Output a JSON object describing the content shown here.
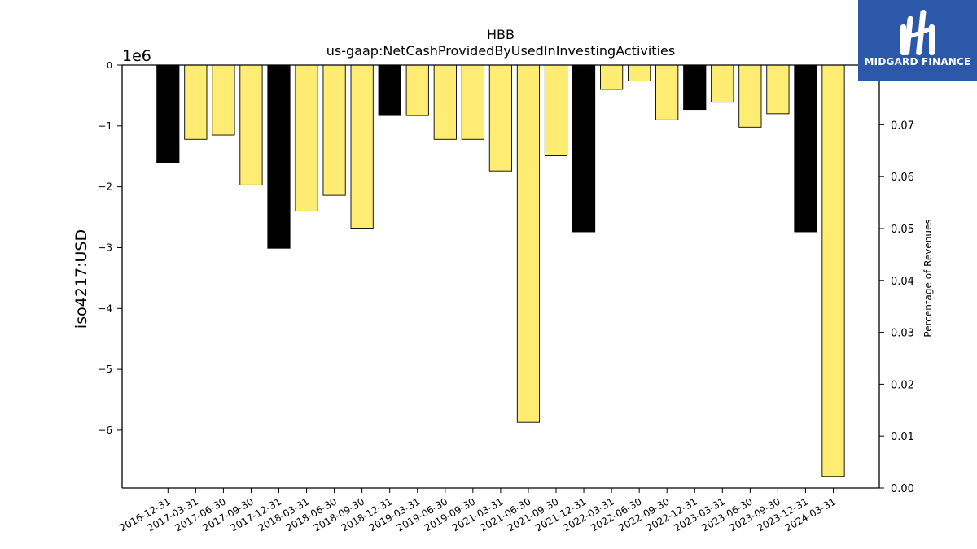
{
  "chart_data": {
    "type": "bar",
    "title": "HBB",
    "subtitle": "us-gaap:NetCashProvidedByUsedInInvestingActivities",
    "ylabel": "iso4217:USD",
    "y2label": "Percentage of Revenues",
    "y_offset_label": "1e6",
    "ylim": [
      -6.95,
      0
    ],
    "y_ticks": [
      0,
      -1,
      -2,
      -3,
      -4,
      -5,
      -6
    ],
    "y2lim": [
      0,
      0.0815
    ],
    "y2_ticks": [
      "0.00",
      "0.01",
      "0.02",
      "0.03",
      "0.04",
      "0.05",
      "0.06",
      "0.07"
    ],
    "categories": [
      "2016-12-31",
      "2017-03-31",
      "2017-06-30",
      "2017-09-30",
      "2017-12-31",
      "2018-03-31",
      "2018-06-30",
      "2018-09-30",
      "2018-12-31",
      "2019-03-31",
      "2019-06-30",
      "2019-09-30",
      "2021-03-31",
      "2021-06-30",
      "2021-09-30",
      "2021-12-31",
      "2022-03-31",
      "2022-06-30",
      "2022-09-30",
      "2022-12-31",
      "2023-03-31",
      "2023-06-30",
      "2023-09-30",
      "2023-12-31",
      "2024-03-31"
    ],
    "values": [
      -1.6,
      -1.22,
      -1.15,
      -1.97,
      -3.01,
      -2.4,
      -2.14,
      -2.68,
      -0.83,
      -0.83,
      -1.22,
      -1.22,
      -1.74,
      -5.87,
      -1.49,
      -2.74,
      -0.4,
      -0.26,
      -0.9,
      -0.73,
      -0.61,
      -1.02,
      -0.8,
      -2.74,
      -6.76
    ],
    "bar_colors": [
      "#000000",
      "#ffec73",
      "#ffec73",
      "#ffec73",
      "#000000",
      "#ffec73",
      "#ffec73",
      "#ffec73",
      "#000000",
      "#ffec73",
      "#ffec73",
      "#ffec73",
      "#ffec73",
      "#ffec73",
      "#ffec73",
      "#000000",
      "#ffec73",
      "#ffec73",
      "#ffec73",
      "#000000",
      "#ffec73",
      "#ffec73",
      "#ffec73",
      "#000000",
      "#ffec73"
    ],
    "grid": false,
    "legend": "none"
  },
  "logo": {
    "text": "MIDGARD FINANCE",
    "background": "#2b58a8",
    "icon": "midgard-m-icon"
  }
}
